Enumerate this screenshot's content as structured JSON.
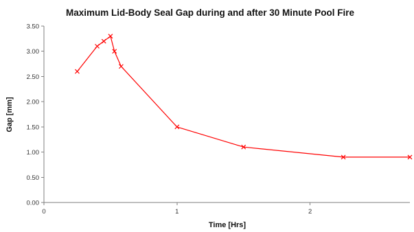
{
  "chart_data": {
    "type": "line",
    "title": "Maximum Lid-Body Seal Gap during and after 30 Minute Pool Fire",
    "xlabel": "Time [Hrs]",
    "ylabel": "Gap [mm]",
    "xlim": [
      0,
      2.75
    ],
    "ylim": [
      0,
      3.5
    ],
    "xticks": [
      0,
      1,
      2
    ],
    "xtick_labels": [
      "0",
      "1",
      "2"
    ],
    "yticks": [
      0,
      0.5,
      1,
      1.5,
      2,
      2.5,
      3,
      3.5
    ],
    "ytick_labels": [
      "0.00",
      "0.50",
      "1.00",
      "1.50",
      "2.00",
      "2.50",
      "3.00",
      "3.50"
    ],
    "grid": false,
    "legend": "none",
    "series": [
      {
        "color": "#ff0000",
        "marker": "x",
        "x": [
          0.25,
          0.4,
          0.45,
          0.5,
          0.53,
          0.58,
          1.0,
          1.5,
          2.25,
          2.75
        ],
        "y": [
          2.6,
          3.1,
          3.2,
          3.3,
          3.0,
          2.7,
          1.5,
          1.1,
          0.9,
          0.9
        ]
      }
    ]
  }
}
